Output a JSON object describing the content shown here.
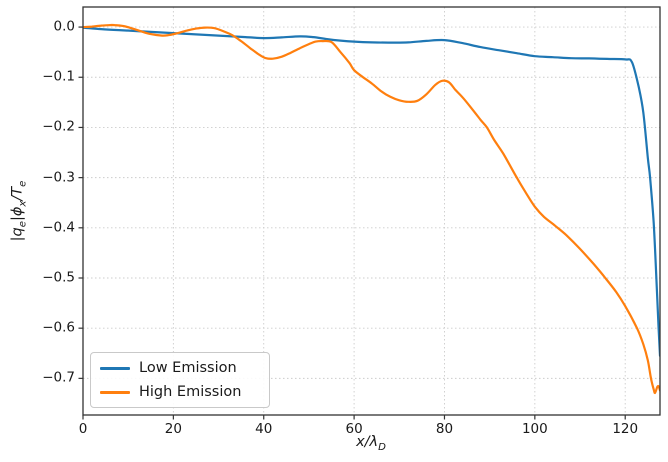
{
  "chart_data": {
    "type": "line",
    "title": "",
    "xlabel_segments": [
      {
        "t": "x/λ"
      },
      {
        "t": "D",
        "sub": true
      }
    ],
    "ylabel_segments": [
      {
        "t": "|q"
      },
      {
        "t": "e",
        "sub": true
      },
      {
        "t": "|ϕ"
      },
      {
        "t": "x",
        "sub": true
      },
      {
        "t": "/T"
      },
      {
        "t": "e",
        "sub": true
      }
    ],
    "xlabel_text": "x/λ_D",
    "ylabel_text": "|q_e|ϕ_x/T_e",
    "xlim": [
      0,
      127.7
    ],
    "ylim": [
      -0.773,
      0.04
    ],
    "grid": true,
    "grid_color": "#cccccc",
    "spine_color": "#333333",
    "legend_position": "lower left",
    "x_ticks": {
      "values": [
        0,
        20,
        40,
        60,
        80,
        100,
        120
      ],
      "labels": [
        "0",
        "20",
        "40",
        "60",
        "80",
        "100",
        "120"
      ]
    },
    "y_ticks": {
      "values": [
        0.0,
        -0.1,
        -0.2,
        -0.3,
        -0.4,
        -0.5,
        -0.6,
        -0.7
      ],
      "labels": [
        "0.0",
        "−0.1",
        "−0.2",
        "−0.3",
        "−0.4",
        "−0.5",
        "−0.6",
        "−0.7"
      ]
    },
    "series": [
      {
        "name": "Low Emission",
        "color": "#1f77b4",
        "points": [
          [
            0,
            -0.001
          ],
          [
            4,
            -0.004
          ],
          [
            8,
            -0.006
          ],
          [
            12,
            -0.008
          ],
          [
            16,
            -0.01
          ],
          [
            20,
            -0.012
          ],
          [
            24,
            -0.014
          ],
          [
            28,
            -0.016
          ],
          [
            32,
            -0.018
          ],
          [
            36,
            -0.02
          ],
          [
            40,
            -0.022
          ],
          [
            44,
            -0.0205
          ],
          [
            48,
            -0.0185
          ],
          [
            51,
            -0.02
          ],
          [
            54,
            -0.024
          ],
          [
            57,
            -0.027
          ],
          [
            60,
            -0.029
          ],
          [
            64,
            -0.0305
          ],
          [
            68,
            -0.031
          ],
          [
            72,
            -0.0305
          ],
          [
            76,
            -0.0275
          ],
          [
            80,
            -0.026
          ],
          [
            84,
            -0.032
          ],
          [
            88,
            -0.04
          ],
          [
            92,
            -0.046
          ],
          [
            96,
            -0.052
          ],
          [
            100,
            -0.058
          ],
          [
            104,
            -0.06
          ],
          [
            108,
            -0.062
          ],
          [
            112,
            -0.0625
          ],
          [
            116,
            -0.0635
          ],
          [
            120,
            -0.0645
          ],
          [
            121.5,
            -0.07
          ],
          [
            123,
            -0.12
          ],
          [
            124,
            -0.17
          ],
          [
            125,
            -0.26
          ],
          [
            125.5,
            -0.3
          ],
          [
            126.3,
            -0.39
          ],
          [
            127,
            -0.52
          ],
          [
            127.4,
            -0.6
          ],
          [
            127.7,
            -0.655
          ]
        ]
      },
      {
        "name": "High Emission",
        "color": "#ff7f0e",
        "points": [
          [
            0,
            0.0
          ],
          [
            2,
            0.001
          ],
          [
            4,
            0.003
          ],
          [
            6,
            0.004
          ],
          [
            7,
            0.004
          ],
          [
            9,
            0.002
          ],
          [
            11,
            -0.003
          ],
          [
            13,
            -0.009
          ],
          [
            15,
            -0.014
          ],
          [
            17.5,
            -0.017
          ],
          [
            19,
            -0.016
          ],
          [
            21,
            -0.012
          ],
          [
            23,
            -0.007
          ],
          [
            25,
            -0.003
          ],
          [
            27,
            -0.001
          ],
          [
            29,
            -0.002
          ],
          [
            31,
            -0.008
          ],
          [
            33,
            -0.016
          ],
          [
            35,
            -0.028
          ],
          [
            37,
            -0.042
          ],
          [
            39,
            -0.055
          ],
          [
            40.5,
            -0.062
          ],
          [
            42,
            -0.063
          ],
          [
            44,
            -0.059
          ],
          [
            46,
            -0.051
          ],
          [
            48,
            -0.042
          ],
          [
            50,
            -0.034
          ],
          [
            51.5,
            -0.029
          ],
          [
            53,
            -0.028
          ],
          [
            55,
            -0.03
          ],
          [
            57,
            -0.05
          ],
          [
            59,
            -0.072
          ],
          [
            60,
            -0.086
          ],
          [
            62,
            -0.1
          ],
          [
            64,
            -0.113
          ],
          [
            66,
            -0.128
          ],
          [
            68,
            -0.139
          ],
          [
            70,
            -0.146
          ],
          [
            72,
            -0.149
          ],
          [
            74,
            -0.147
          ],
          [
            76,
            -0.134
          ],
          [
            78,
            -0.115
          ],
          [
            79.5,
            -0.107
          ],
          [
            81,
            -0.11
          ],
          [
            82.4,
            -0.125
          ],
          [
            84,
            -0.14
          ],
          [
            86,
            -0.162
          ],
          [
            88,
            -0.185
          ],
          [
            89.4,
            -0.2
          ],
          [
            91,
            -0.225
          ],
          [
            93,
            -0.252
          ],
          [
            96,
            -0.3
          ],
          [
            98,
            -0.33
          ],
          [
            100,
            -0.358
          ],
          [
            102,
            -0.378
          ],
          [
            104.5,
            -0.396
          ],
          [
            107,
            -0.415
          ],
          [
            110,
            -0.442
          ],
          [
            113,
            -0.472
          ],
          [
            115.6,
            -0.5
          ],
          [
            118,
            -0.528
          ],
          [
            120,
            -0.556
          ],
          [
            122.6,
            -0.6
          ],
          [
            124,
            -0.632
          ],
          [
            125,
            -0.664
          ],
          [
            125.7,
            -0.7
          ],
          [
            126.3,
            -0.722
          ],
          [
            126.6,
            -0.729
          ],
          [
            127.1,
            -0.717
          ],
          [
            127.4,
            -0.716
          ],
          [
            127.7,
            -0.724
          ]
        ]
      }
    ]
  },
  "legend": {
    "low_label": "Low Emission",
    "high_label": "High Emission"
  }
}
